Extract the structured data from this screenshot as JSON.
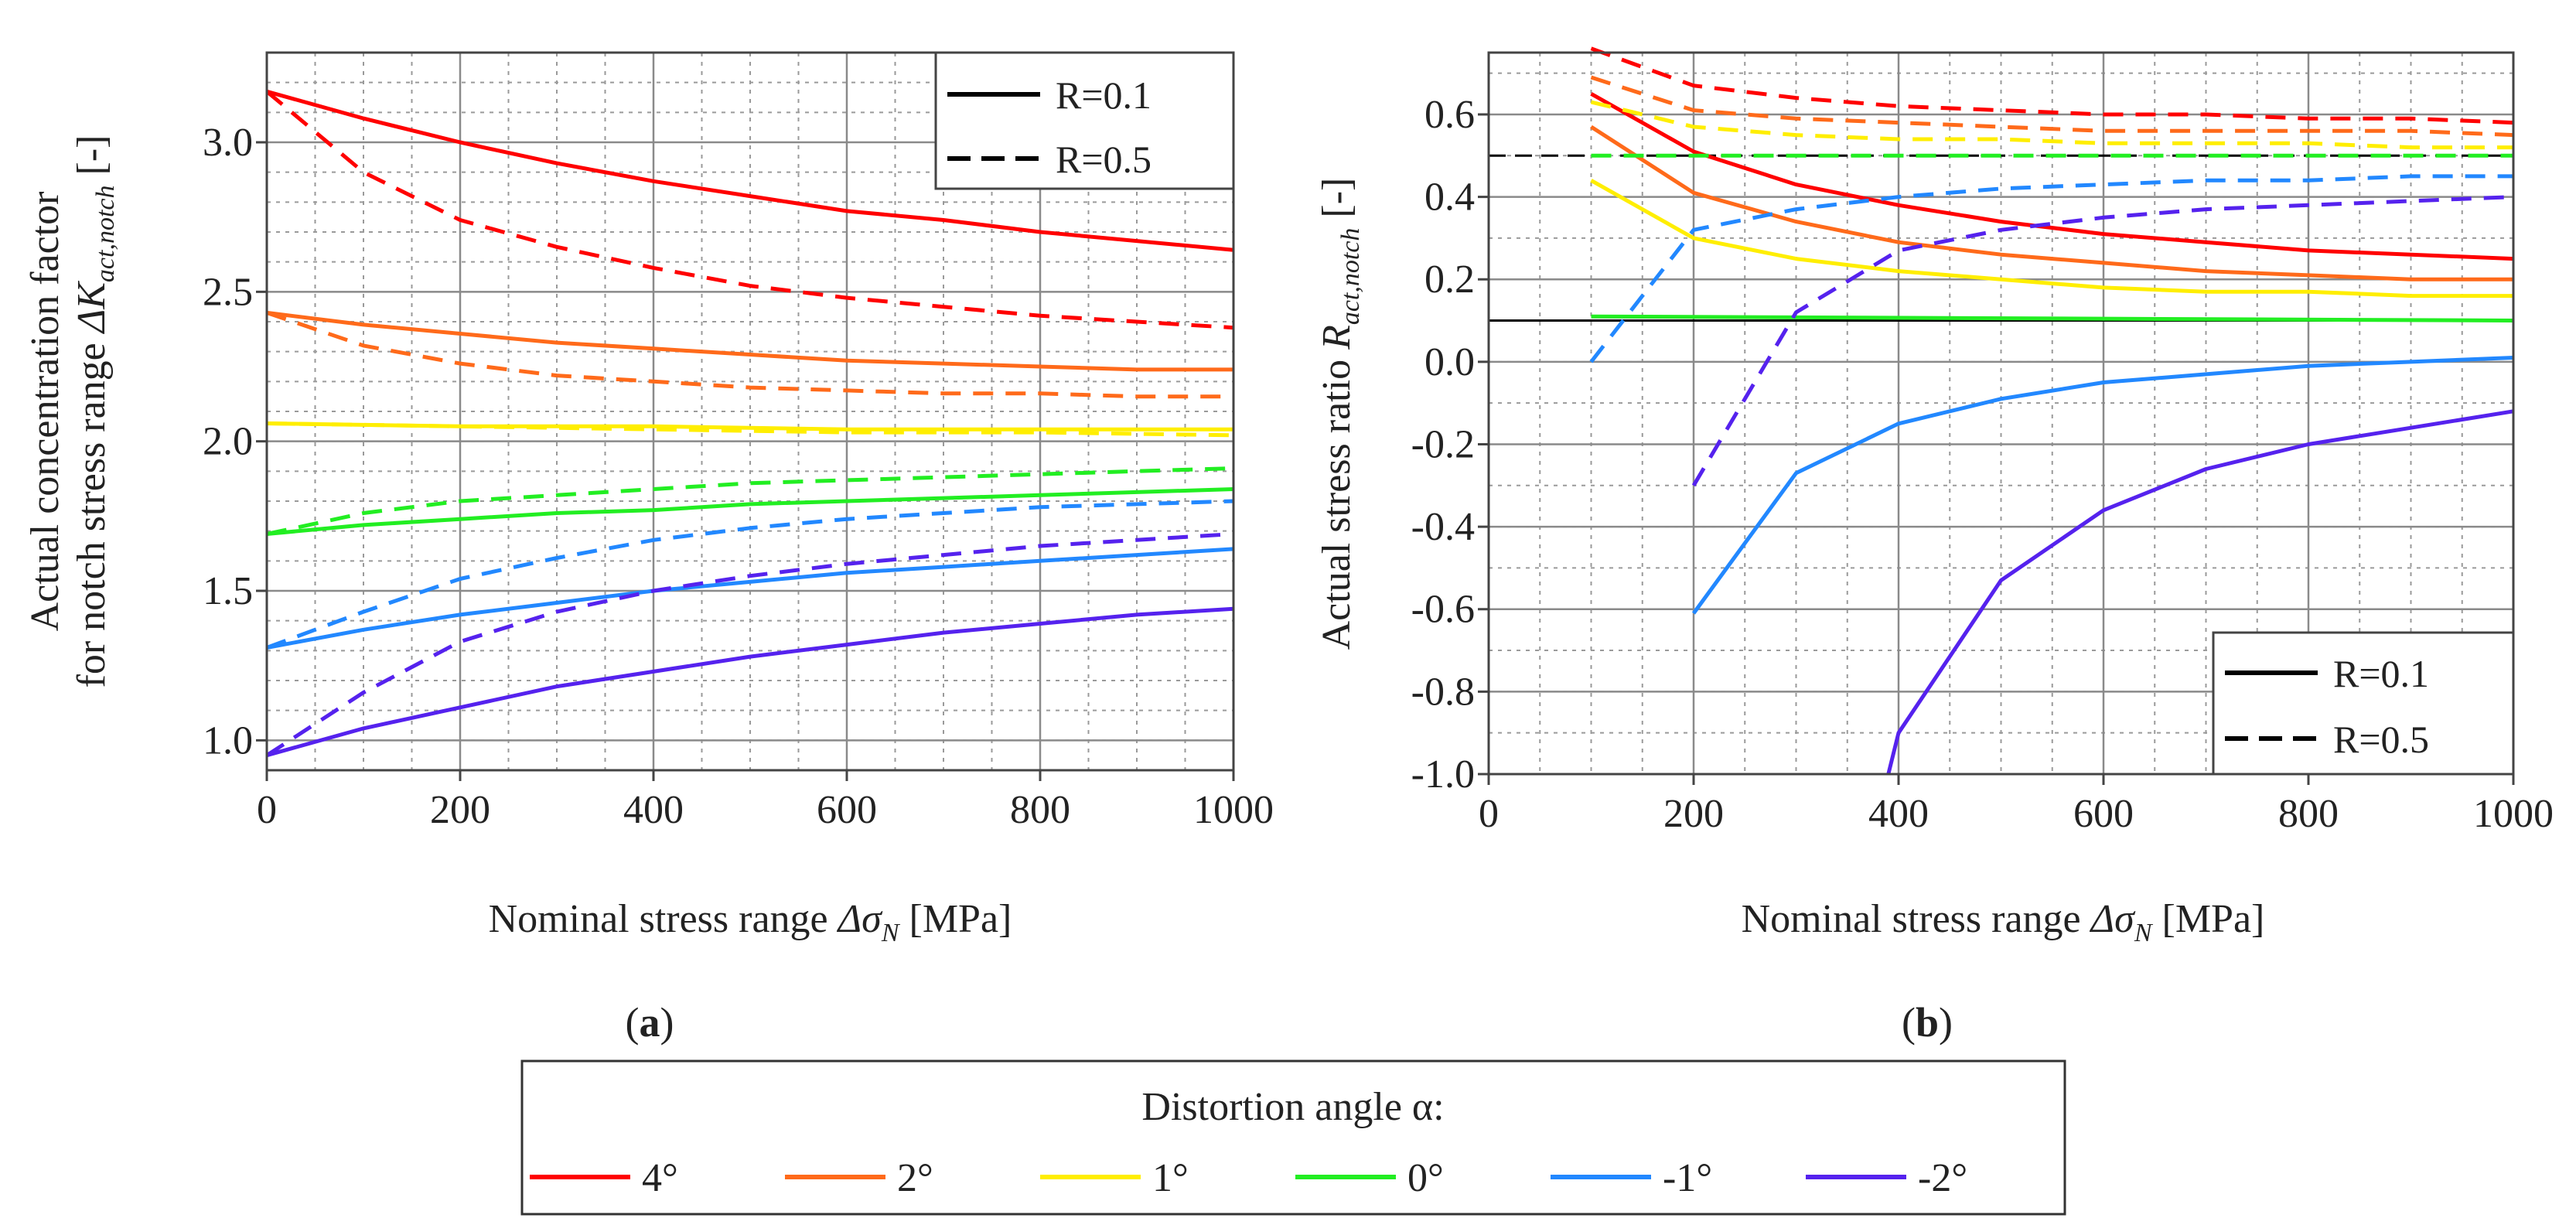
{
  "panel_labels": {
    "a": "(a)",
    "b": "(b)"
  },
  "axes_text": {
    "a_xlabel_pre": "Nominal stress range ",
    "a_xlabel_sym": "Δσ",
    "a_xlabel_sub": "N",
    "a_xlabel_unit": " [MPa]",
    "a_ylabel_line1": "Actual concentration factor",
    "a_ylabel_line2_pre": "for notch stress range ",
    "a_ylabel_line2_sym": "ΔK",
    "a_ylabel_line2_sub": "act,notch",
    "a_ylabel_line2_unit": " [-]",
    "b_xlabel_pre": "Nominal stress range ",
    "b_xlabel_sym": "Δσ",
    "b_xlabel_sub": "N",
    "b_xlabel_unit": " [MPa]",
    "b_ylabel_pre": "Actual stress ratio ",
    "b_ylabel_sym": "R",
    "b_ylabel_sub": "act,notch",
    "b_ylabel_unit": " [-]"
  },
  "inner_legend": {
    "solid_label": "R=0.1",
    "dashed_label": "R=0.5"
  },
  "bottom_legend": {
    "title": "Distortion angle α:",
    "entries": [
      {
        "label": "4°",
        "color": "#ff0000"
      },
      {
        "label": "2°",
        "color": "#ff6a1a"
      },
      {
        "label": "1°",
        "color": "#ffee00"
      },
      {
        "label": "0°",
        "color": "#22ee22"
      },
      {
        "label": "-1°",
        "color": "#2288ff"
      },
      {
        "label": "-2°",
        "color": "#5522ee"
      }
    ]
  },
  "chart_data": [
    {
      "id": "a",
      "type": "line",
      "title": "(a)",
      "xlabel": "Nominal stress range ΔσN [MPa]",
      "ylabel": "Actual concentration factor for notch stress range ΔKact,notch [-]",
      "xlim": [
        0,
        1000
      ],
      "ylim": [
        0.9,
        3.3
      ],
      "xticks": [
        0,
        200,
        400,
        600,
        800,
        1000
      ],
      "yticks": [
        1.0,
        1.5,
        2.0,
        2.5,
        3.0
      ],
      "ytick_labels": [
        "1.0",
        "1.5",
        "2.0",
        "2.5",
        "3.0"
      ],
      "legend": {
        "placement": "top-right",
        "entries": [
          "R=0.1",
          "R=0.5"
        ]
      },
      "series": [
        {
          "name": "4°, R=0.1",
          "color": "#ff0000",
          "dash": false,
          "x": [
            0,
            100,
            200,
            300,
            400,
            500,
            600,
            700,
            800,
            900,
            1000
          ],
          "y": [
            3.17,
            3.08,
            3.0,
            2.93,
            2.87,
            2.82,
            2.77,
            2.74,
            2.7,
            2.67,
            2.64
          ]
        },
        {
          "name": "4°, R=0.5",
          "color": "#ff0000",
          "dash": true,
          "x": [
            0,
            100,
            200,
            300,
            400,
            500,
            600,
            700,
            800,
            900,
            1000
          ],
          "y": [
            3.17,
            2.9,
            2.74,
            2.65,
            2.58,
            2.52,
            2.48,
            2.45,
            2.42,
            2.4,
            2.38
          ]
        },
        {
          "name": "2°, R=0.1",
          "color": "#ff6a1a",
          "dash": false,
          "x": [
            0,
            100,
            200,
            300,
            400,
            500,
            600,
            700,
            800,
            900,
            1000
          ],
          "y": [
            2.43,
            2.39,
            2.36,
            2.33,
            2.31,
            2.29,
            2.27,
            2.26,
            2.25,
            2.24,
            2.24
          ]
        },
        {
          "name": "2°, R=0.5",
          "color": "#ff6a1a",
          "dash": true,
          "x": [
            0,
            100,
            200,
            300,
            400,
            500,
            600,
            700,
            800,
            900,
            1000
          ],
          "y": [
            2.43,
            2.32,
            2.26,
            2.22,
            2.2,
            2.18,
            2.17,
            2.16,
            2.16,
            2.15,
            2.15
          ]
        },
        {
          "name": "1°, R=0.1",
          "color": "#ffee00",
          "dash": false,
          "x": [
            0,
            200,
            400,
            600,
            800,
            1000
          ],
          "y": [
            2.06,
            2.05,
            2.05,
            2.04,
            2.04,
            2.04
          ]
        },
        {
          "name": "1°, R=0.5",
          "color": "#ffee00",
          "dash": true,
          "x": [
            0,
            200,
            400,
            600,
            800,
            1000
          ],
          "y": [
            2.06,
            2.05,
            2.04,
            2.03,
            2.03,
            2.02
          ]
        },
        {
          "name": "0°, R=0.1",
          "color": "#22ee22",
          "dash": false,
          "x": [
            0,
            100,
            200,
            300,
            400,
            500,
            600,
            700,
            800,
            900,
            1000
          ],
          "y": [
            1.69,
            1.72,
            1.74,
            1.76,
            1.77,
            1.79,
            1.8,
            1.81,
            1.82,
            1.83,
            1.84
          ]
        },
        {
          "name": "0°, R=0.5",
          "color": "#22ee22",
          "dash": true,
          "x": [
            0,
            100,
            200,
            300,
            400,
            500,
            600,
            700,
            800,
            900,
            1000
          ],
          "y": [
            1.69,
            1.76,
            1.8,
            1.82,
            1.84,
            1.86,
            1.87,
            1.88,
            1.89,
            1.9,
            1.91
          ]
        },
        {
          "name": "-1°, R=0.1",
          "color": "#2288ff",
          "dash": false,
          "x": [
            0,
            100,
            200,
            300,
            400,
            500,
            600,
            700,
            800,
            900,
            1000
          ],
          "y": [
            1.31,
            1.37,
            1.42,
            1.46,
            1.5,
            1.53,
            1.56,
            1.58,
            1.6,
            1.62,
            1.64
          ]
        },
        {
          "name": "-1°, R=0.5",
          "color": "#2288ff",
          "dash": true,
          "x": [
            0,
            100,
            200,
            300,
            400,
            500,
            600,
            700,
            800,
            900,
            1000
          ],
          "y": [
            1.31,
            1.43,
            1.54,
            1.61,
            1.67,
            1.71,
            1.74,
            1.76,
            1.78,
            1.79,
            1.8
          ]
        },
        {
          "name": "-2°, R=0.1",
          "color": "#5522ee",
          "dash": false,
          "x": [
            0,
            100,
            200,
            300,
            400,
            500,
            600,
            700,
            800,
            900,
            1000
          ],
          "y": [
            0.95,
            1.04,
            1.11,
            1.18,
            1.23,
            1.28,
            1.32,
            1.36,
            1.39,
            1.42,
            1.44
          ]
        },
        {
          "name": "-2°, R=0.5",
          "color": "#5522ee",
          "dash": true,
          "x": [
            0,
            100,
            200,
            300,
            400,
            500,
            600,
            700,
            800,
            900,
            1000
          ],
          "y": [
            0.95,
            1.16,
            1.33,
            1.43,
            1.5,
            1.55,
            1.59,
            1.62,
            1.65,
            1.67,
            1.69
          ]
        }
      ]
    },
    {
      "id": "b",
      "type": "line",
      "title": "(b)",
      "xlabel": "Nominal stress range ΔσN [MPa]",
      "ylabel": "Actual stress ratio Ract,notch [-]",
      "xlim": [
        0,
        1000
      ],
      "ylim": [
        -1.0,
        0.75
      ],
      "xticks": [
        0,
        200,
        400,
        600,
        800,
        1000
      ],
      "yticks": [
        -1.0,
        -0.8,
        -0.6,
        -0.4,
        -0.2,
        0.0,
        0.2,
        0.4,
        0.6
      ],
      "ytick_labels": [
        "-1.0",
        "-0.8",
        "-0.6",
        "-0.4",
        "-0.2",
        "0.0",
        "0.2",
        "0.4",
        "0.6"
      ],
      "legend": {
        "placement": "bottom-right",
        "entries": [
          "R=0.1",
          "R=0.5"
        ]
      },
      "reference_lines": [
        {
          "name": "R=0.1 reference",
          "y": 0.1,
          "dash": false,
          "color": "#000000"
        },
        {
          "name": "R=0.5 reference",
          "y": 0.5,
          "dash": true,
          "color": "#000000"
        }
      ],
      "series": [
        {
          "name": "4°, R=0.1",
          "color": "#ff0000",
          "dash": false,
          "x": [
            100,
            200,
            300,
            400,
            500,
            600,
            700,
            800,
            900,
            1000
          ],
          "y": [
            0.65,
            0.51,
            0.43,
            0.38,
            0.34,
            0.31,
            0.29,
            0.27,
            0.26,
            0.25
          ]
        },
        {
          "name": "4°, R=0.5",
          "color": "#ff0000",
          "dash": true,
          "x": [
            100,
            200,
            300,
            400,
            500,
            600,
            700,
            800,
            900,
            1000
          ],
          "y": [
            0.76,
            0.67,
            0.64,
            0.62,
            0.61,
            0.6,
            0.6,
            0.59,
            0.59,
            0.58
          ]
        },
        {
          "name": "2°, R=0.1",
          "color": "#ff6a1a",
          "dash": false,
          "x": [
            100,
            200,
            300,
            400,
            500,
            600,
            700,
            800,
            900,
            1000
          ],
          "y": [
            0.57,
            0.41,
            0.34,
            0.29,
            0.26,
            0.24,
            0.22,
            0.21,
            0.2,
            0.2
          ]
        },
        {
          "name": "2°, R=0.5",
          "color": "#ff6a1a",
          "dash": true,
          "x": [
            100,
            200,
            300,
            400,
            500,
            600,
            700,
            800,
            900,
            1000
          ],
          "y": [
            0.69,
            0.61,
            0.59,
            0.58,
            0.57,
            0.56,
            0.56,
            0.56,
            0.56,
            0.55
          ]
        },
        {
          "name": "1°, R=0.1",
          "color": "#ffee00",
          "dash": false,
          "x": [
            100,
            200,
            300,
            400,
            500,
            600,
            700,
            800,
            900,
            1000
          ],
          "y": [
            0.44,
            0.3,
            0.25,
            0.22,
            0.2,
            0.18,
            0.17,
            0.17,
            0.16,
            0.16
          ]
        },
        {
          "name": "1°, R=0.5",
          "color": "#ffee00",
          "dash": true,
          "x": [
            100,
            200,
            300,
            400,
            500,
            600,
            700,
            800,
            900,
            1000
          ],
          "y": [
            0.63,
            0.57,
            0.55,
            0.54,
            0.54,
            0.53,
            0.53,
            0.53,
            0.52,
            0.52
          ]
        },
        {
          "name": "0°, R=0.1",
          "color": "#22ee22",
          "dash": false,
          "x": [
            100,
            1000
          ],
          "y": [
            0.11,
            0.1
          ]
        },
        {
          "name": "0°, R=0.5",
          "color": "#22ee22",
          "dash": true,
          "x": [
            100,
            1000
          ],
          "y": [
            0.5,
            0.5
          ]
        },
        {
          "name": "-1°, R=0.1",
          "color": "#2288ff",
          "dash": false,
          "x": [
            200,
            300,
            400,
            500,
            600,
            700,
            800,
            900,
            1000
          ],
          "y": [
            -0.61,
            -0.27,
            -0.15,
            -0.09,
            -0.05,
            -0.03,
            -0.01,
            0.0,
            0.01
          ]
        },
        {
          "name": "-1°, R=0.5",
          "color": "#2288ff",
          "dash": true,
          "x": [
            100,
            200,
            300,
            400,
            500,
            600,
            700,
            800,
            900,
            1000
          ],
          "y": [
            0.0,
            0.32,
            0.37,
            0.4,
            0.42,
            0.43,
            0.44,
            0.44,
            0.45,
            0.45
          ]
        },
        {
          "name": "-2°, R=0.1",
          "color": "#5522ee",
          "dash": false,
          "x": [
            390,
            400,
            500,
            600,
            700,
            800,
            900,
            1000
          ],
          "y": [
            -1.0,
            -0.9,
            -0.53,
            -0.36,
            -0.26,
            -0.2,
            -0.16,
            -0.12
          ]
        },
        {
          "name": "-2°, R=0.5",
          "color": "#5522ee",
          "dash": true,
          "x": [
            200,
            300,
            400,
            500,
            600,
            700,
            800,
            900,
            1000
          ],
          "y": [
            -0.3,
            0.12,
            0.27,
            0.32,
            0.35,
            0.37,
            0.38,
            0.39,
            0.4
          ]
        }
      ]
    }
  ]
}
